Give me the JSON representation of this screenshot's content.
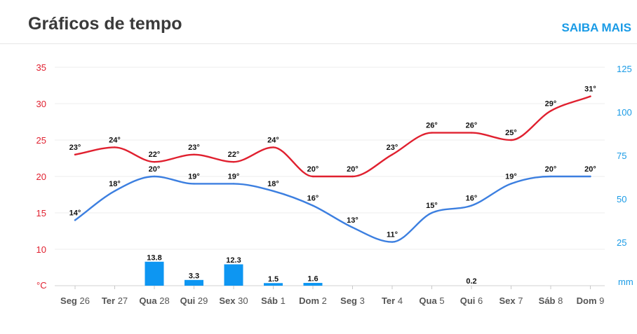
{
  "header": {
    "title": "Gráficos de tempo",
    "more_label": "SAIBA MAIS"
  },
  "colors": {
    "max": "#e0202f",
    "min": "#3c7fe0",
    "rain": "#0d96f2",
    "leftAxis": "#e0202f",
    "rightAxis": "#1a9be6",
    "link": "#1a9be6"
  },
  "chart_data": {
    "type": "line",
    "categories": [
      "Seg 26",
      "Ter 27",
      "Qua 28",
      "Qui 29",
      "Sex 30",
      "Sáb 1",
      "Dom 2",
      "Seg 3",
      "Ter 4",
      "Qua 5",
      "Qui 6",
      "Sex 7",
      "Sáb 8",
      "Dom 9"
    ],
    "series": [
      {
        "key": "max",
        "axis": "left",
        "values": [
          23,
          24,
          22,
          23,
          22,
          24,
          20,
          20,
          23,
          26,
          26,
          25,
          29,
          31
        ],
        "labels": [
          "23°",
          "24°",
          "22°",
          "23°",
          "22°",
          "24°",
          "20°",
          "20°",
          "23°",
          "26°",
          "26°",
          "25°",
          "29°",
          "31°"
        ]
      },
      {
        "key": "min",
        "axis": "left",
        "values": [
          14,
          18,
          20,
          19,
          19,
          18,
          16,
          13,
          11,
          15,
          16,
          19,
          20,
          20
        ],
        "labels": [
          "14°",
          "18°",
          "20°",
          "19°",
          "19°",
          "18°",
          "16°",
          "13°",
          "11°",
          "15°",
          "16°",
          "19°",
          "20°",
          "20°"
        ]
      },
      {
        "key": "rain",
        "type": "bar",
        "axis": "right",
        "values": [
          null,
          null,
          13.8,
          3.3,
          12.3,
          1.5,
          1.6,
          null,
          null,
          null,
          0.2,
          null,
          null,
          null
        ],
        "labels": [
          "",
          "",
          "13.8",
          "3.3",
          "12.3",
          "1.5",
          "1.6",
          "",
          "",
          "",
          "0.2",
          "",
          "",
          ""
        ]
      }
    ],
    "left_axis": {
      "unit": "°C",
      "ticks": [
        "10",
        "15",
        "20",
        "25",
        "30",
        "35"
      ],
      "ylim": [
        5,
        35
      ]
    },
    "right_axis": {
      "unit": "mm",
      "ticks": [
        "25",
        "50",
        "75",
        "100",
        "125"
      ],
      "ylim": [
        0,
        125
      ]
    },
    "grid": true
  }
}
